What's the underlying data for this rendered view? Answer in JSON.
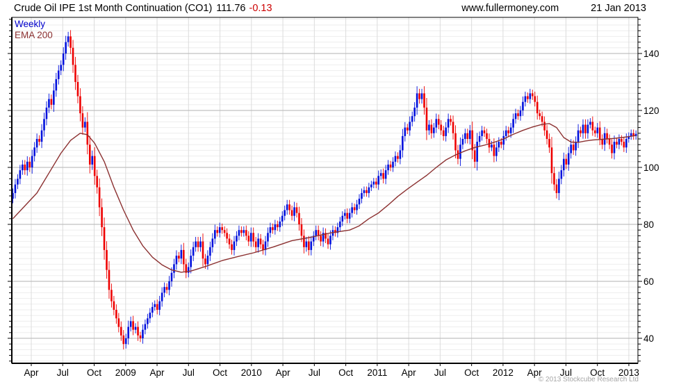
{
  "header": {
    "title": "Crude Oil IPE 1st Month Continuation (CO1)",
    "price": "111.76",
    "change": "-0.13",
    "site": "www.fullermoney.com",
    "date": "21 Jan 2013"
  },
  "legend": {
    "timeframe": "Weekly",
    "overlay": "EMA 200"
  },
  "footer": {
    "copyright": "© 2013 Stockcube Research Ltd"
  },
  "colors": {
    "up_bar": "#0010dd",
    "down_bar": "#ee0000",
    "ema_line": "#8b3030",
    "change_text": "#cc0000",
    "grid_major": "#c0c0c0",
    "grid_minor": "#ededed",
    "grid_vertical": "#dcdcdc",
    "axis": "#000000"
  },
  "chart_data": {
    "type": "candlestick",
    "title": "Crude Oil IPE 1st Month Continuation (CO1)",
    "subtitle": "Weekly bars with 200-week EMA overlay, early Feb 2008 to 21 Jan 2013",
    "last_price": 111.76,
    "change": -0.13,
    "interval": "weekly",
    "x_ticks": [
      "Apr",
      "Jul",
      "Oct",
      "2009",
      "Apr",
      "Jul",
      "Oct",
      "2010",
      "Apr",
      "Jul",
      "Oct",
      "2011",
      "Apr",
      "Jul",
      "Oct",
      "2012",
      "Apr",
      "Jul",
      "Oct",
      "2013"
    ],
    "y_ticks": [
      140,
      120,
      100,
      80,
      60,
      40
    ],
    "y_minor_step": 2,
    "ylim": [
      31,
      153
    ],
    "grid": "on",
    "legend_position": "top-left",
    "closes": [
      91,
      94,
      96,
      99,
      101,
      99,
      102,
      100,
      104,
      107,
      110,
      109,
      113,
      117,
      121,
      124,
      122,
      127,
      131,
      134,
      136,
      140,
      144,
      146,
      142,
      136,
      130,
      125,
      119,
      114,
      116,
      108,
      101,
      104,
      97,
      93,
      86,
      79,
      71,
      64,
      57,
      53,
      50,
      47,
      44,
      41,
      38,
      40,
      44,
      46,
      43,
      44,
      41,
      40,
      43,
      45,
      47,
      49,
      51,
      52,
      50,
      53,
      56,
      58,
      57,
      60,
      63,
      66,
      69,
      68,
      71,
      66,
      63,
      65,
      69,
      72,
      74,
      72,
      74,
      68,
      66,
      69,
      72,
      75,
      78,
      77,
      79,
      78,
      77,
      75,
      73,
      71,
      74,
      76,
      78,
      77,
      78,
      76,
      74,
      77,
      74,
      72,
      75,
      73,
      71,
      74,
      77,
      79,
      78,
      80,
      79,
      81,
      83,
      85,
      87,
      85,
      83,
      86,
      84,
      80,
      76,
      72,
      74,
      71,
      74,
      76,
      78,
      76,
      74,
      77,
      75,
      73,
      76,
      78,
      77,
      79,
      81,
      83,
      84,
      82,
      84,
      86,
      85,
      87,
      89,
      91,
      92,
      91,
      93,
      94,
      95,
      94,
      97,
      98,
      96,
      99,
      101,
      100,
      102,
      104,
      103,
      106,
      111,
      114,
      113,
      116,
      118,
      121,
      126,
      124,
      126,
      121,
      113,
      115,
      112,
      114,
      117,
      115,
      113,
      111,
      114,
      117,
      116,
      112,
      106,
      103,
      108,
      110,
      112,
      110,
      113,
      106,
      102,
      109,
      111,
      113,
      112,
      110,
      107,
      108,
      104,
      107,
      109,
      108,
      111,
      113,
      112,
      114,
      117,
      119,
      118,
      120,
      123,
      125,
      124,
      126,
      125,
      123,
      119,
      118,
      116,
      113,
      110,
      107,
      98,
      94,
      91,
      96,
      99,
      103,
      101,
      105,
      108,
      106,
      109,
      113,
      112,
      115,
      112,
      115,
      116,
      113,
      112,
      114,
      110,
      108,
      112,
      110,
      108,
      105,
      109,
      108,
      110,
      109,
      107,
      110,
      111,
      112,
      111,
      111.76
    ],
    "ema200_points": [
      [
        0,
        82
      ],
      [
        5,
        86.5
      ],
      [
        10,
        91
      ],
      [
        15,
        98
      ],
      [
        20,
        105
      ],
      [
        24,
        109.5
      ],
      [
        28,
        112
      ],
      [
        31,
        111.5
      ],
      [
        34,
        108.5
      ],
      [
        38,
        102
      ],
      [
        42,
        93
      ],
      [
        46,
        85
      ],
      [
        50,
        78
      ],
      [
        54,
        72.5
      ],
      [
        58,
        68.5
      ],
      [
        62,
        65.8
      ],
      [
        66,
        64
      ],
      [
        70,
        63.2
      ],
      [
        74,
        63.6
      ],
      [
        80,
        65.2
      ],
      [
        87,
        67.3
      ],
      [
        94,
        68.8
      ],
      [
        100,
        70
      ],
      [
        108,
        72
      ],
      [
        116,
        74.3
      ],
      [
        124,
        75.5
      ],
      [
        132,
        77
      ],
      [
        140,
        78
      ],
      [
        144,
        79.5
      ],
      [
        148,
        82
      ],
      [
        152,
        84
      ],
      [
        156,
        86.8
      ],
      [
        160,
        89.8
      ],
      [
        164,
        92.4
      ],
      [
        168,
        94.8
      ],
      [
        172,
        97.2
      ],
      [
        176,
        100
      ],
      [
        180,
        102.6
      ],
      [
        184,
        104.4
      ],
      [
        188,
        105.8
      ],
      [
        192,
        107
      ],
      [
        196,
        107.8
      ],
      [
        200,
        108.8
      ],
      [
        204,
        110
      ],
      [
        208,
        111.6
      ],
      [
        212,
        113
      ],
      [
        216,
        114.2
      ],
      [
        220,
        115.1
      ],
      [
        223,
        115.4
      ],
      [
        226,
        114
      ],
      [
        229,
        110.5
      ],
      [
        232,
        108.9
      ],
      [
        235,
        108.8
      ],
      [
        238,
        109.3
      ],
      [
        241,
        109.6
      ],
      [
        244,
        109.8
      ],
      [
        247,
        110
      ],
      [
        250,
        110.2
      ],
      [
        253,
        110.5
      ],
      [
        256,
        110.8
      ],
      [
        259,
        111.2
      ]
    ]
  }
}
